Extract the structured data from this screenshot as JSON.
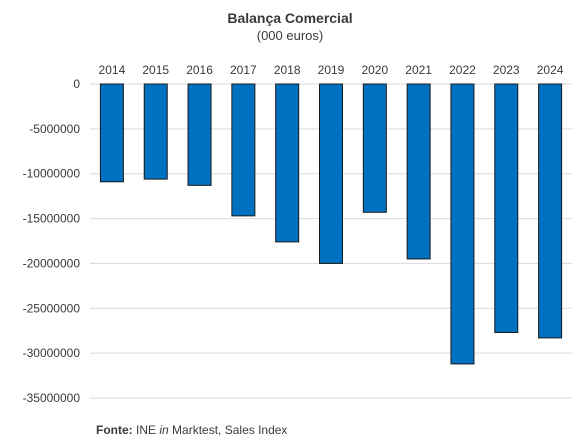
{
  "chart_data": {
    "type": "bar",
    "title": "Balança Comercial",
    "subtitle": "(000 euros)",
    "xlabel": "",
    "ylabel": "",
    "categories": [
      "2014",
      "2015",
      "2016",
      "2017",
      "2018",
      "2019",
      "2020",
      "2021",
      "2022",
      "2023",
      "2024"
    ],
    "values": [
      -10900000,
      -10600000,
      -11300000,
      -14700000,
      -17600000,
      -20000000,
      -14300000,
      -19500000,
      -31200000,
      -27700000,
      -28300000
    ],
    "ylim": [
      -35000000,
      0
    ],
    "yticks": [
      0,
      -5000000,
      -10000000,
      -15000000,
      -20000000,
      -25000000,
      -30000000,
      -35000000
    ],
    "ytick_labels": [
      "0",
      "-5000000",
      "-10000000",
      "-15000000",
      "-20000000",
      "-25000000",
      "-30000000",
      "-35000000"
    ],
    "grid": true,
    "bar_color": "#0070c0",
    "categories_position": "top"
  },
  "source": {
    "label": "Fonte:",
    "text_before": "INE",
    "text_italic": "in",
    "text_after": "Marktest, Sales Index"
  }
}
